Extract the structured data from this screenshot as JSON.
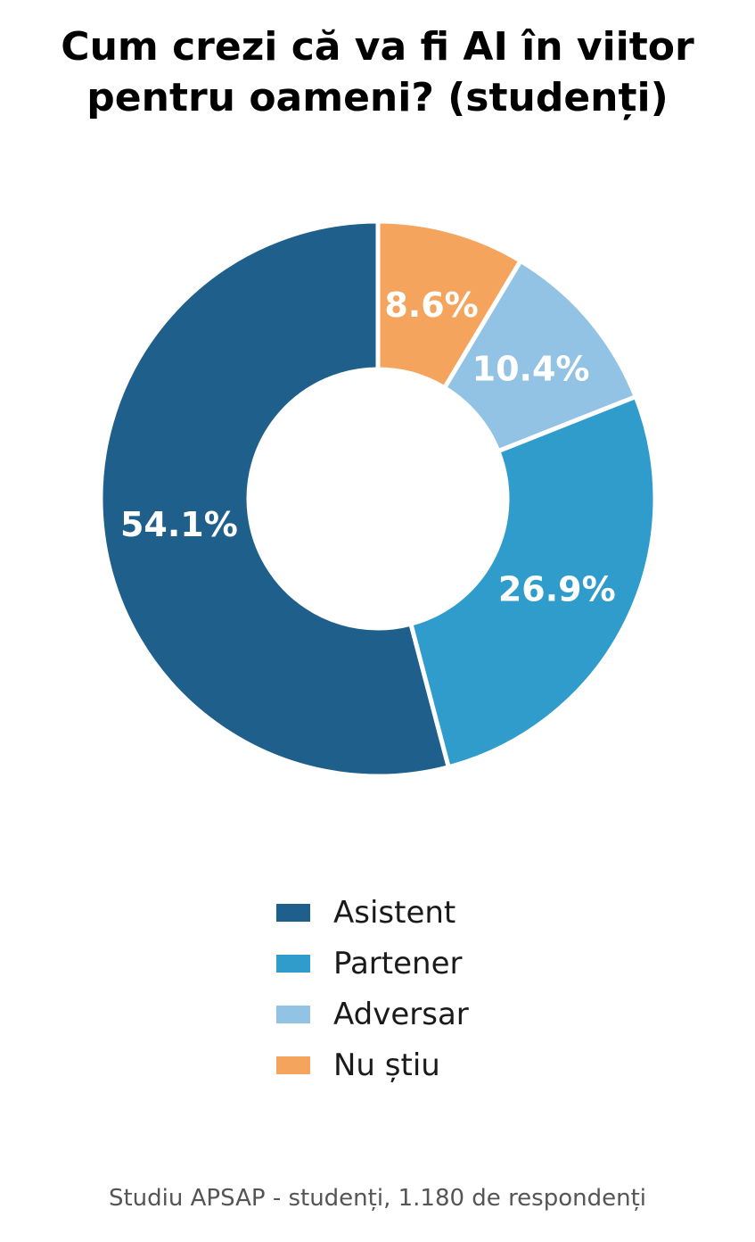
{
  "chart_data": {
    "type": "pie",
    "subtype": "donut",
    "title_lines": [
      "Cum crezi că va fi AI în viitor",
      "pentru oameni? (studenți)"
    ],
    "categories": [
      "Asistent",
      "Partener",
      "Adversar",
      "Nu știu"
    ],
    "values": [
      54.1,
      26.9,
      10.4,
      8.6
    ],
    "labels": [
      "54.1%",
      "26.9%",
      "10.4%",
      "8.6%"
    ],
    "colors": [
      "#1f5f8b",
      "#2f9ccb",
      "#93c3e4",
      "#f4a45c"
    ],
    "start_angle_deg": 90,
    "direction": "clockwise-from-top-reversed",
    "legend_position": "bottom-center",
    "source": "Studiu APSAP - studenți, 1.180 de respondenți"
  }
}
